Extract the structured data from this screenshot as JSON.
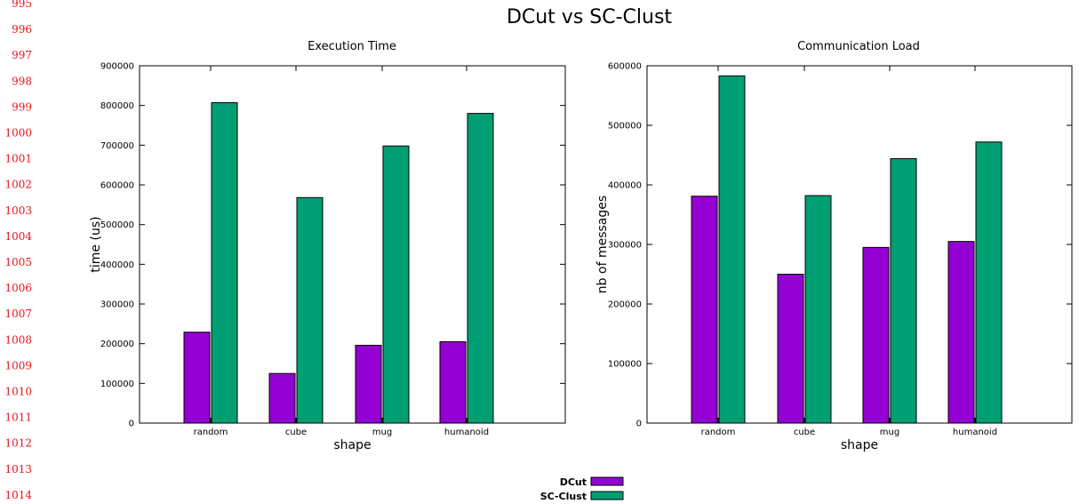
{
  "line_numbers": [
    "995",
    "996",
    "997",
    "998",
    "999",
    "1000",
    "1001",
    "1002",
    "1003",
    "1004",
    "1005",
    "1006",
    "1007",
    "1008",
    "1009",
    "1010",
    "1011",
    "1012",
    "1013",
    "1014"
  ],
  "title": "DCut vs SC-Clust",
  "colors": {
    "DCut": "#9400d3",
    "SC-Clust": "#009e73",
    "line_numbers": "#e8131d"
  },
  "legend": {
    "placement": "bottom-center",
    "entries": [
      "DCut",
      "SC-Clust"
    ]
  },
  "chart_data": [
    {
      "type": "bar",
      "title": "Execution Time",
      "xlabel": "shape",
      "ylabel": "time (us)",
      "categories": [
        "random",
        "cube",
        "mug",
        "humanoid"
      ],
      "ylim": [
        0,
        900000
      ],
      "yticks": [
        0,
        100000,
        200000,
        300000,
        400000,
        500000,
        600000,
        700000,
        800000,
        900000
      ],
      "grid": false,
      "series": [
        {
          "name": "DCut",
          "values": [
            229000,
            125000,
            196000,
            205000
          ]
        },
        {
          "name": "SC-Clust",
          "values": [
            807000,
            568000,
            698000,
            780000
          ]
        }
      ]
    },
    {
      "type": "bar",
      "title": "Communication Load",
      "xlabel": "shape",
      "ylabel": "nb of messages",
      "categories": [
        "random",
        "cube",
        "mug",
        "humanoid"
      ],
      "ylim": [
        0,
        600000
      ],
      "yticks": [
        0,
        100000,
        200000,
        300000,
        400000,
        500000,
        600000
      ],
      "grid": false,
      "series": [
        {
          "name": "DCut",
          "values": [
            381000,
            250000,
            295000,
            305000
          ]
        },
        {
          "name": "SC-Clust",
          "values": [
            583000,
            382000,
            444000,
            472000
          ]
        }
      ]
    }
  ]
}
